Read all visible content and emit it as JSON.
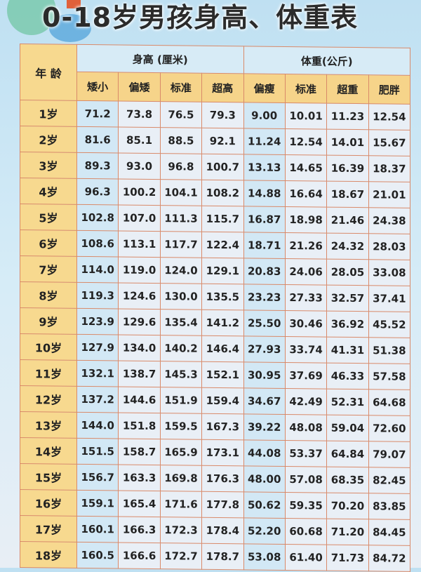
{
  "title": "0-18岁男孩身高、体重表",
  "table": {
    "age_header": "年 龄",
    "height_group": "身高 (厘米)",
    "weight_group": "体重(公斤)",
    "height_cols": [
      "矮小",
      "偏矮",
      "标准",
      "超高"
    ],
    "weight_cols": [
      "偏瘦",
      "标准",
      "超重",
      "肥胖"
    ],
    "rows": [
      {
        "age": "1岁",
        "values": [
          "71.2",
          "73.8",
          "76.5",
          "79.3",
          "9.00",
          "10.01",
          "11.23",
          "12.54"
        ]
      },
      {
        "age": "2岁",
        "values": [
          "81.6",
          "85.1",
          "88.5",
          "92.1",
          "11.24",
          "12.54",
          "14.01",
          "15.67"
        ]
      },
      {
        "age": "3岁",
        "values": [
          "89.3",
          "93.0",
          "96.8",
          "100.7",
          "13.13",
          "14.65",
          "16.39",
          "18.37"
        ]
      },
      {
        "age": "4岁",
        "values": [
          "96.3",
          "100.2",
          "104.1",
          "108.2",
          "14.88",
          "16.64",
          "18.67",
          "21.01"
        ]
      },
      {
        "age": "5岁",
        "values": [
          "102.8",
          "107.0",
          "111.3",
          "115.7",
          "16.87",
          "18.98",
          "21.46",
          "24.38"
        ]
      },
      {
        "age": "6岁",
        "values": [
          "108.6",
          "113.1",
          "117.7",
          "122.4",
          "18.71",
          "21.26",
          "24.32",
          "28.03"
        ]
      },
      {
        "age": "7岁",
        "values": [
          "114.0",
          "119.0",
          "124.0",
          "129.1",
          "20.83",
          "24.06",
          "28.05",
          "33.08"
        ]
      },
      {
        "age": "8岁",
        "values": [
          "119.3",
          "124.6",
          "130.0",
          "135.5",
          "23.23",
          "27.33",
          "32.57",
          "37.41"
        ]
      },
      {
        "age": "9岁",
        "values": [
          "123.9",
          "129.6",
          "135.4",
          "141.2",
          "25.50",
          "30.46",
          "36.92",
          "45.52"
        ]
      },
      {
        "age": "10岁",
        "values": [
          "127.9",
          "134.0",
          "140.2",
          "146.4",
          "27.93",
          "33.74",
          "41.31",
          "51.38"
        ]
      },
      {
        "age": "11岁",
        "values": [
          "132.1",
          "138.7",
          "145.3",
          "152.1",
          "30.95",
          "37.69",
          "46.33",
          "57.58"
        ]
      },
      {
        "age": "12岁",
        "values": [
          "137.2",
          "144.6",
          "151.9",
          "159.4",
          "34.67",
          "42.49",
          "52.31",
          "64.68"
        ]
      },
      {
        "age": "13岁",
        "values": [
          "144.0",
          "151.8",
          "159.5",
          "167.3",
          "39.22",
          "48.08",
          "59.04",
          "72.60"
        ]
      },
      {
        "age": "14岁",
        "values": [
          "151.5",
          "158.7",
          "165.9",
          "173.1",
          "44.08",
          "53.37",
          "64.84",
          "79.07"
        ]
      },
      {
        "age": "15岁",
        "values": [
          "156.7",
          "163.3",
          "169.8",
          "176.3",
          "48.00",
          "57.08",
          "68.35",
          "82.45"
        ]
      },
      {
        "age": "16岁",
        "values": [
          "159.1",
          "165.4",
          "171.6",
          "177.8",
          "50.62",
          "59.35",
          "70.20",
          "83.85"
        ]
      },
      {
        "age": "17岁",
        "values": [
          "160.1",
          "166.3",
          "172.3",
          "178.4",
          "52.20",
          "60.68",
          "71.20",
          "84.45"
        ]
      },
      {
        "age": "18岁",
        "values": [
          "160.5",
          "166.6",
          "172.7",
          "178.7",
          "53.08",
          "61.40",
          "71.73",
          "84.72"
        ]
      }
    ]
  }
}
